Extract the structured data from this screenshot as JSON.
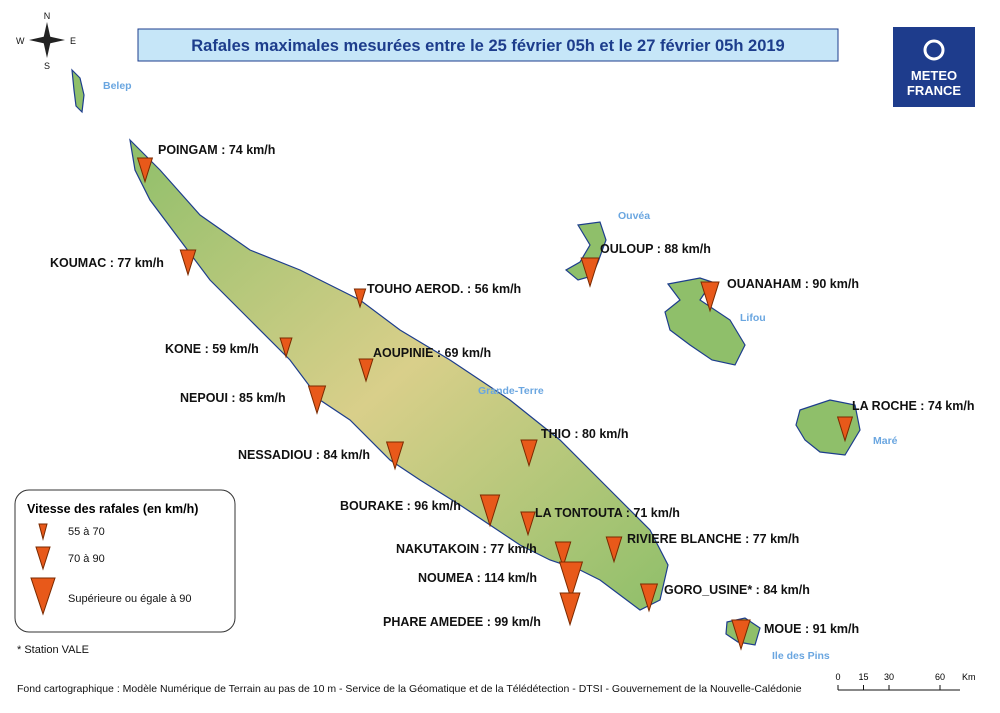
{
  "title": "Rafales maximales mesurées entre le 25 février 05h et le 27 février 05h 2019",
  "logo": {
    "line1": "METEO",
    "line2": "FRANCE"
  },
  "compass": {
    "n": "N",
    "s": "S",
    "e": "E",
    "w": "W"
  },
  "places": [
    "Belep",
    "Ouvéa",
    "Lifou",
    "Grande-Terre",
    "Maré",
    "Ile des Pins"
  ],
  "stations": [
    {
      "label": "POINGAM : 74 km/h",
      "gust": 74
    },
    {
      "label": "KOUMAC : 77 km/h",
      "gust": 77
    },
    {
      "label": "TOUHO AEROD. : 56 km/h",
      "gust": 56
    },
    {
      "label": "KONE : 59 km/h",
      "gust": 59
    },
    {
      "label": "AOUPINIE : 69 km/h",
      "gust": 69
    },
    {
      "label": "NEPOUI : 85 km/h",
      "gust": 85
    },
    {
      "label": "NESSADIOU : 84 km/h",
      "gust": 84
    },
    {
      "label": "THIO : 80 km/h",
      "gust": 80
    },
    {
      "label": "BOURAKE : 96 km/h",
      "gust": 96
    },
    {
      "label": "LA TONTOUTA : 71 km/h",
      "gust": 71
    },
    {
      "label": "RIVIERE BLANCHE : 77 km/h",
      "gust": 77
    },
    {
      "label": "NAKUTAKOIN : 77 km/h",
      "gust": 77
    },
    {
      "label": "NOUMEA : 114 km/h",
      "gust": 114,
      "label_color": "#e8201a"
    },
    {
      "label": "GORO_USINE* : 84 km/h",
      "gust": 84
    },
    {
      "label": "PHARE AMEDEE : 99 km/h",
      "gust": 99
    },
    {
      "label": "MOUE : 91 km/h",
      "gust": 91
    },
    {
      "label": "OULOUP : 88 km/h",
      "gust": 88
    },
    {
      "label": "OUANAHAM : 90 km/h",
      "gust": 90
    },
    {
      "label": "LA ROCHE : 74 km/h",
      "gust": 74
    }
  ],
  "legend": {
    "title": "Vitesse des rafales (en km/h)",
    "items": [
      "55 à 70",
      "70 à 90",
      "Supérieure ou égale à 90"
    ]
  },
  "note": "* Station VALE",
  "footer": "Fond cartographique : Modèle Numérique de Terrain au pas de 10 m - Service de la Géomatique et de la Télédétection - DTSI - Gouvernement de la Nouvelle-Calédonie",
  "scale": {
    "ticks": [
      0,
      15,
      30,
      60
    ],
    "unit": "Km"
  }
}
